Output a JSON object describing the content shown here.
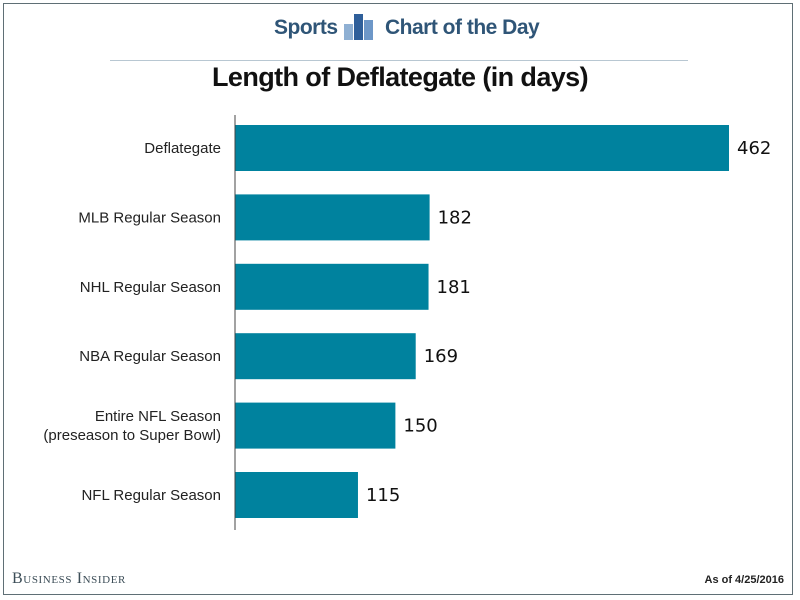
{
  "header": {
    "section": "Sports",
    "series_name": "Chart of the Day"
  },
  "chart_data": {
    "type": "bar",
    "orientation": "horizontal",
    "title": "Length of Deflategate (in days)",
    "categories": [
      "Deflategate",
      "MLB Regular Season",
      "NHL Regular Season",
      "NBA Regular Season",
      "Entire NFL Season\n(preseason to Super Bowl)",
      "NFL Regular Season"
    ],
    "values": [
      462,
      182,
      181,
      169,
      150,
      115
    ],
    "xlim": [
      0,
      462
    ],
    "grid": false,
    "legend": "none",
    "bar_color": "#00829e"
  },
  "footer": {
    "brand": "Business Insider",
    "as_of": "As of 4/25/2016"
  }
}
